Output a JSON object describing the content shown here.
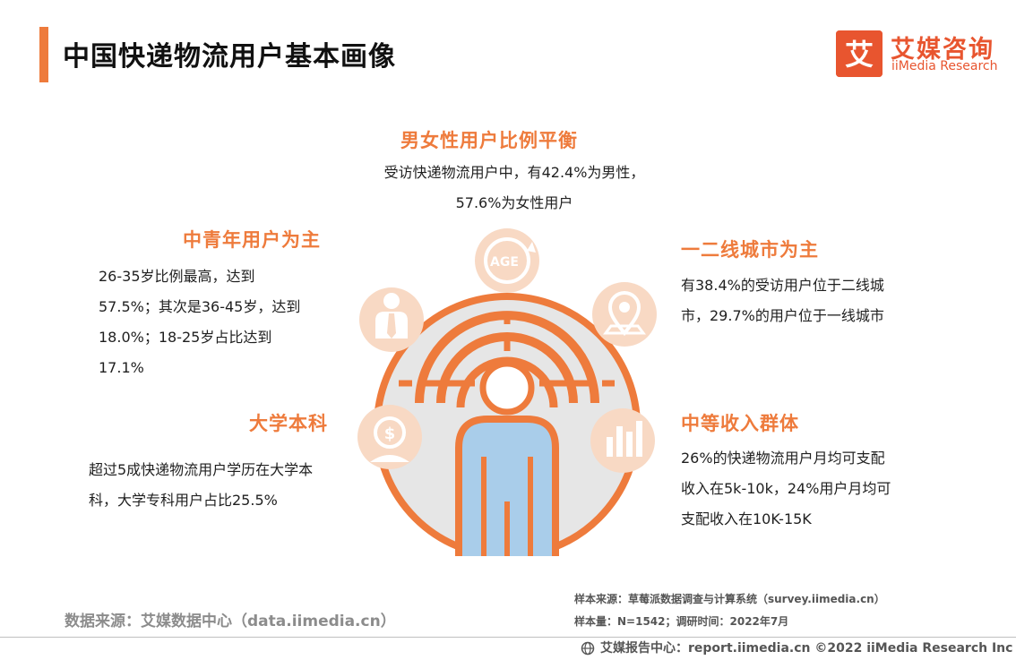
{
  "header": {
    "title": "中国快递物流用户基本画像"
  },
  "logo": {
    "cn": "艾媒咨询",
    "en": "iiMedia Research",
    "mark": "艾"
  },
  "center": {
    "age_label": "AGE"
  },
  "sections": {
    "gender": {
      "title": "男女性用户比例平衡",
      "lines": [
        "受访快递物流用户中，有42.4%为男性，",
        "57.6%为女性用户"
      ]
    },
    "age": {
      "title": "中青年用户为主",
      "lines": [
        "26-35岁比例最高，达到",
        "57.5%；其次是36-45岁，达到",
        "18.0%；18-25岁占比达到",
        "17.1%"
      ]
    },
    "city": {
      "title": "一二线城市为主",
      "lines": [
        "有38.4%的受访用户位于二线城",
        "市，29.7%的用户位于一线城市"
      ]
    },
    "education": {
      "title": "大学本科",
      "lines": [
        "超过5成快递物流用户学历在大学本",
        "科，大学专科用户占比25.5%"
      ]
    },
    "income": {
      "title": "中等收入群体",
      "lines": [
        "26%的快递物流用户月均可支配",
        "收入在5k-10k，24%用户月均可",
        "支配收入在10K-15K"
      ]
    }
  },
  "footer": {
    "data_source": "数据来源：艾媒数据中心（data.iimedia.cn）",
    "sample_source": "样本来源：草莓派数据调查与计算系统（survey.iimedia.cn）",
    "sample_size": "样本量：N=1542；调研时间：2022年7月",
    "report": "艾媒报告中心：report.iimedia.cn  ©2022  iiMedia Research  Inc"
  },
  "colors": {
    "accent": "#ee7b3c",
    "brand": "#e8552f",
    "icon_circle": "#f8d9c4",
    "figure_blue": "#a9cdea",
    "grey_circle": "#e6e6e6"
  }
}
